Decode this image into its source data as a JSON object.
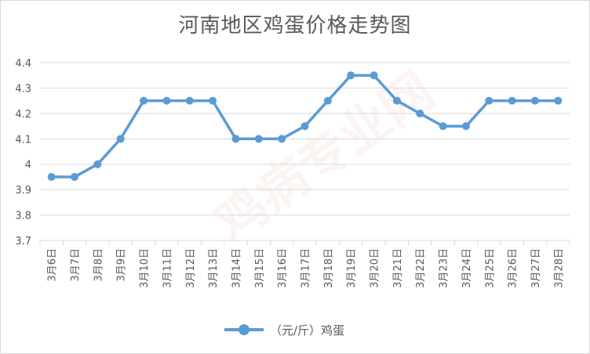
{
  "chart_data": {
    "type": "line",
    "title": "河南地区鸡蛋价格走势图",
    "categories": [
      "3月6日",
      "3月7日",
      "3月8日",
      "3月9日",
      "3月10日",
      "3月11日",
      "3月12日",
      "3月13日",
      "3月14日",
      "3月15日",
      "3月16日",
      "3月17日",
      "3月18日",
      "3月19日",
      "3月20日",
      "3月21日",
      "3月22日",
      "3月23日",
      "3月24日",
      "3月25日",
      "3月26日",
      "3月27日",
      "3月28日"
    ],
    "series": [
      {
        "name": "（元/斤）鸡蛋",
        "values": [
          3.95,
          3.95,
          4.0,
          4.1,
          4.25,
          4.25,
          4.25,
          4.25,
          4.1,
          4.1,
          4.1,
          4.15,
          4.25,
          4.35,
          4.35,
          4.25,
          4.2,
          4.15,
          4.15,
          4.25,
          4.25,
          4.25,
          4.25
        ]
      }
    ],
    "ylim": [
      3.7,
      4.4
    ],
    "yticks": [
      "3.7",
      "3.8",
      "3.9",
      "4",
      "4.1",
      "4.2",
      "4.3",
      "4.4"
    ],
    "grid": true,
    "legend": "bottom",
    "color": "#5b9bd5"
  },
  "watermark": "鸡病专业网"
}
